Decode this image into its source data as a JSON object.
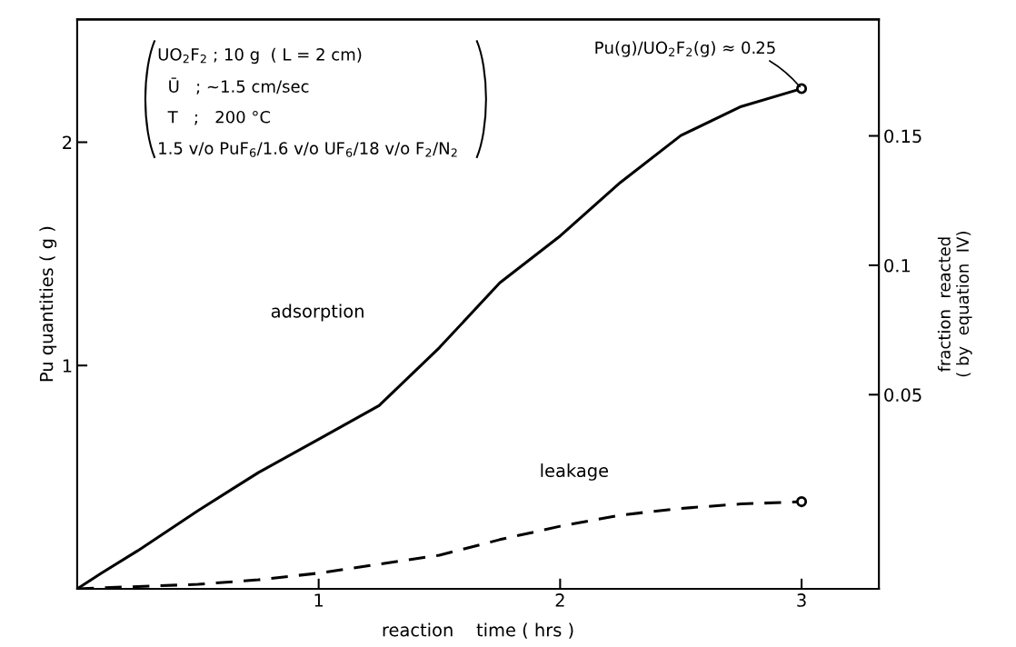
{
  "chart_data": {
    "type": "line",
    "xlabel": "reaction    time ( hrs )",
    "ylabel": "Pu quantities ( g )",
    "y2label": "fraction  reacted\n( by  equation  IV)",
    "x": [
      0,
      0.1,
      0.25,
      0.5,
      0.75,
      1.0,
      1.25,
      1.5,
      1.75,
      2.0,
      2.25,
      2.5,
      2.75,
      3.0
    ],
    "series": [
      {
        "color": "#000000",
        "line_style": "solid",
        "values": [
          0,
          0.07,
          0.17,
          0.35,
          0.52,
          0.67,
          0.82,
          1.08,
          1.37,
          1.58,
          1.82,
          2.03,
          2.16,
          2.24
        ]
      },
      {
        "color": "#000000",
        "line_style": "dashed",
        "x": [
          0,
          0.25,
          0.5,
          0.75,
          1.0,
          1.25,
          1.5,
          1.75,
          2.0,
          2.25,
          2.5,
          2.75,
          3.0
        ],
        "values": [
          0,
          0.01,
          0.02,
          0.04,
          0.07,
          0.11,
          0.15,
          0.22,
          0.28,
          0.33,
          0.36,
          0.38,
          0.39
        ]
      },
      {
        "type": "scatter",
        "color": "#000000",
        "marker": "circle",
        "x": [
          3.0,
          3.0
        ],
        "values": [
          2.24,
          0.39
        ]
      }
    ],
    "xlim": [
      0,
      3.32
    ],
    "xticks": [
      1,
      2,
      3
    ],
    "ylim": [
      0,
      2.55
    ],
    "yticks": [
      1,
      2
    ],
    "y2lim": [
      -0.025,
      0.195
    ],
    "y2ticks": [
      0.05,
      0.1,
      0.15
    ],
    "grid": false,
    "legend": false,
    "marker": "none",
    "annotations": [
      "UO$_{2}$F$_{2}$ ; 10 g  ( L = 2 cm)",
      "  Ū   ; ~1.5 cm/sec",
      "  T   ;   200 °C",
      "1.5 v/o PuF$_{6}$/1.6 v/o UF$_{6}$/18 v/o F$_{2}$/N$_{2}$",
      "adsorption",
      "leakage",
      {
        "text": "Pu(g)/UO$_{2}$F$_{2}$(g) ≈ 0.25",
        "x": 3.0,
        "y": 2.24
      }
    ]
  }
}
